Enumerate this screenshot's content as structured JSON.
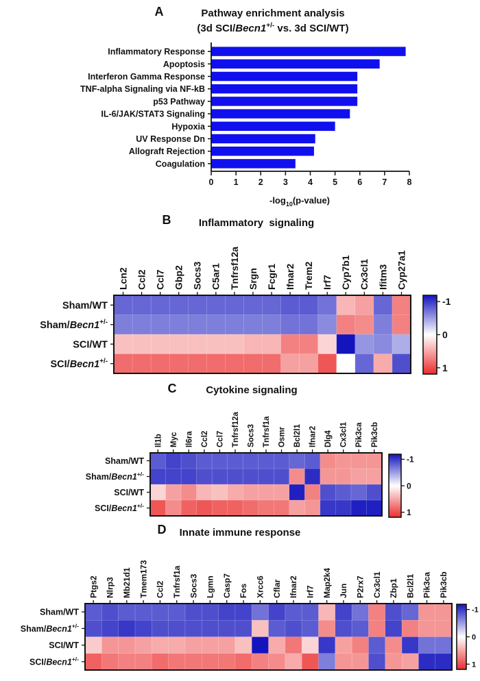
{
  "chart_data": [
    {
      "type": "bar",
      "panel": "A",
      "title_line1": "Pathway enrichment analysis",
      "title_line2_pre": "(3d SCI/",
      "title_gene": "Becn1",
      "title_sup": "+/-",
      "title_line2_post": " vs. 3d SCI/WT)",
      "orientation": "horizontal",
      "categories": [
        "Inflammatory Response",
        "Apoptosis",
        "Interferon Gamma Response",
        "TNF-alpha Signaling via NF-kB",
        "p53 Pathway",
        "IL-6/JAK/STAT3 Signaling",
        "Hypoxia",
        "UV Response Dn",
        "Allograft Rejection",
        "Coagulation"
      ],
      "values": [
        7.85,
        6.8,
        5.9,
        5.9,
        5.9,
        5.6,
        5.0,
        4.2,
        4.15,
        3.4
      ],
      "xlabel_pre": "-log",
      "xlabel_sub": "10",
      "xlabel_post": "(p-value)",
      "xlim": [
        0,
        8
      ],
      "xticks": [
        "0",
        "1",
        "2",
        "3",
        "4",
        "5",
        "6",
        "7",
        "8"
      ],
      "bar_color": "#1010ee"
    },
    {
      "type": "heatmap",
      "panel": "B",
      "title": "Inflammatory  signaling",
      "columns": [
        "Lcn2",
        "Ccl2",
        "Ccl7",
        "Gbp2",
        "Socs3",
        "C5ar1",
        "Tnfrsf12a",
        "Srgn",
        "Fcgr1",
        "Ifnar2",
        "Trem2",
        "Irf7",
        "Cyp7b1",
        "Cx3cl1",
        "Ifitm3",
        "Cyp27a1"
      ],
      "rows": [
        {
          "label": "Sham/WT",
          "gene": "",
          "sup": ""
        },
        {
          "label": "Sham/",
          "gene": "Becn1",
          "sup": "+/-"
        },
        {
          "label": "SCI/WT",
          "gene": "",
          "sup": ""
        },
        {
          "label": "SCI/",
          "gene": "Becn1",
          "sup": "+/-"
        }
      ],
      "values": [
        [
          -0.65,
          -0.65,
          -0.65,
          -0.65,
          -0.65,
          -0.65,
          -0.65,
          -0.65,
          -0.65,
          -0.7,
          -0.7,
          -0.6,
          0.35,
          0.45,
          -0.65,
          0.6
        ],
        [
          -0.55,
          -0.55,
          -0.55,
          -0.55,
          -0.55,
          -0.55,
          -0.55,
          -0.55,
          -0.55,
          -0.6,
          -0.6,
          -0.5,
          0.6,
          0.55,
          -0.55,
          0.6
        ],
        [
          0.3,
          0.3,
          0.3,
          0.3,
          0.3,
          0.3,
          0.3,
          0.35,
          0.35,
          0.6,
          0.6,
          0.2,
          -1.0,
          -0.45,
          -0.5,
          -0.35
        ],
        [
          0.7,
          0.7,
          0.7,
          0.7,
          0.7,
          0.7,
          0.7,
          0.7,
          0.7,
          0.45,
          0.45,
          0.8,
          0.0,
          -0.65,
          0.4,
          -0.75
        ]
      ],
      "colorbar_ticks": [
        "-1",
        "0",
        "1"
      ]
    },
    {
      "type": "heatmap",
      "panel": "C",
      "title": "Cytokine signaling",
      "columns": [
        "Il1b",
        "Myc",
        "Il6ra",
        "Ccl2",
        "Ccl7",
        "Tnfrsf12a",
        "Socs3",
        "Tnfrsf1a",
        "Osmr",
        "Bcl2l1",
        "Ifnar2",
        "Dlg4",
        "Cx3cl1",
        "Pik3ca",
        "Pik3cb"
      ],
      "rows": [
        {
          "label": "Sham/WT",
          "gene": "",
          "sup": ""
        },
        {
          "label": "Sham/",
          "gene": "Becn1",
          "sup": "+/-"
        },
        {
          "label": "SCI/WT",
          "gene": "",
          "sup": ""
        },
        {
          "label": "SCI/",
          "gene": "Becn1",
          "sup": "+/-"
        }
      ],
      "values": [
        [
          -0.7,
          -0.8,
          -0.75,
          -0.7,
          -0.7,
          -0.7,
          -0.7,
          -0.7,
          -0.7,
          -0.65,
          -0.7,
          0.55,
          0.5,
          0.5,
          0.5
        ],
        [
          -0.8,
          -0.8,
          -0.8,
          -0.75,
          -0.75,
          -0.75,
          -0.75,
          -0.75,
          -0.75,
          0.55,
          -0.9,
          0.5,
          0.5,
          0.45,
          0.45
        ],
        [
          0.2,
          0.45,
          0.55,
          0.35,
          0.3,
          0.4,
          0.45,
          0.45,
          0.45,
          -0.95,
          0.6,
          -0.75,
          -0.7,
          -0.65,
          -0.75
        ],
        [
          0.8,
          0.55,
          0.75,
          0.8,
          0.75,
          0.75,
          0.7,
          0.65,
          0.65,
          0.45,
          0.5,
          -0.85,
          -0.85,
          -0.95,
          -0.95
        ]
      ],
      "colorbar_ticks": [
        "-1",
        "0",
        "1"
      ]
    },
    {
      "type": "heatmap",
      "panel": "D",
      "title": "Innate immune response",
      "columns": [
        "Ptgs2",
        "Nlrp3",
        "Mb21d1",
        "Tmem173",
        "Ccl2",
        "Tnfrsf1a",
        "Socs3",
        "Lgmn",
        "Casp7",
        "Fos",
        "Xrcc6",
        "Cflar",
        "Ifnar2",
        "Irf7",
        "Map2k4",
        "Jun",
        "P2rx7",
        "Cx3cl1",
        "Zbp1",
        "Bcl2l1",
        "Pik3ca",
        "Pik3cb"
      ],
      "rows": [
        {
          "label": "Sham/WT",
          "gene": "",
          "sup": ""
        },
        {
          "label": "Sham/",
          "gene": "Becn1",
          "sup": "+/-"
        },
        {
          "label": "SCI/WT",
          "gene": "",
          "sup": ""
        },
        {
          "label": "SCI/",
          "gene": "Becn1",
          "sup": "+/-"
        }
      ],
      "values": [
        [
          -0.7,
          -0.75,
          -0.7,
          -0.7,
          -0.7,
          -0.7,
          -0.75,
          -0.75,
          -0.8,
          -0.8,
          -0.6,
          -0.8,
          -0.7,
          -0.7,
          0.35,
          -0.8,
          -0.6,
          0.6,
          -0.75,
          -0.65,
          0.5,
          0.5
        ],
        [
          -0.75,
          -0.8,
          -0.85,
          -0.8,
          -0.75,
          -0.75,
          -0.75,
          -0.75,
          -0.75,
          -0.75,
          0.3,
          -0.7,
          -0.75,
          -0.7,
          0.55,
          -0.75,
          -0.7,
          0.6,
          -0.8,
          0.6,
          0.5,
          0.5
        ],
        [
          0.25,
          0.5,
          0.5,
          0.45,
          0.4,
          0.4,
          0.45,
          0.45,
          0.45,
          0.3,
          -1.0,
          0.4,
          0.65,
          0.2,
          -0.85,
          0.45,
          0.6,
          -0.7,
          0.55,
          -0.85,
          -0.6,
          -0.6
        ],
        [
          0.75,
          0.65,
          0.6,
          0.6,
          0.7,
          0.65,
          0.65,
          0.65,
          0.65,
          0.7,
          0.6,
          0.55,
          0.4,
          0.8,
          -0.55,
          0.5,
          0.5,
          -0.75,
          0.5,
          0.45,
          -0.9,
          -0.9
        ]
      ],
      "colorbar_ticks": [
        "-1",
        "0",
        "1"
      ]
    }
  ]
}
